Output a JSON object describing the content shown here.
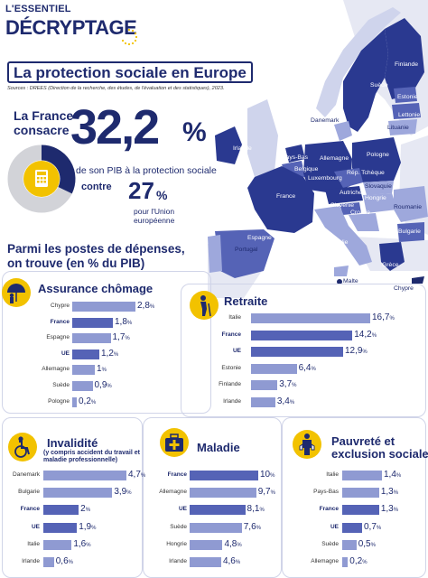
{
  "header": {
    "small": "L'ESSENTIEL",
    "big": "DÉCRYPTAGE"
  },
  "title": "La protection sociale en Europe",
  "source": "Sources : DREES (Direction de la recherche, des études, de l'évaluation et des statistiques), 2023.",
  "headline": {
    "country_line1": "La France",
    "country_line2": "consacre",
    "value": "32,2",
    "unit": "%",
    "description": "de son PIB à la protection sociale",
    "contre": "contre",
    "ue_value": "27",
    "ue_unit": "%",
    "ue_description_1": "pour l'Union",
    "ue_description_2": "européenne"
  },
  "section_heading_1": "Parmi les postes de dépenses,",
  "section_heading_2": "on trouve (en % du PIB)",
  "map_labels": [
    {
      "name": "Finlande"
    },
    {
      "name": "Suède"
    },
    {
      "name": "Estonie"
    },
    {
      "name": "Lettonie"
    },
    {
      "name": "Lituanie"
    },
    {
      "name": "Danemark"
    },
    {
      "name": "Irlande"
    },
    {
      "name": "Pays-Bas"
    },
    {
      "name": "Allemagne"
    },
    {
      "name": "Pologne"
    },
    {
      "name": "Belgique"
    },
    {
      "name": "Luxembourg"
    },
    {
      "name": "Rép. Tchèque"
    },
    {
      "name": "Slovaquie"
    },
    {
      "name": "Autriche"
    },
    {
      "name": "Hongrie"
    },
    {
      "name": "France"
    },
    {
      "name": "Roumanie"
    },
    {
      "name": "Slovénie"
    },
    {
      "name": "Croatie"
    },
    {
      "name": "Bulgarie"
    },
    {
      "name": "Espagne"
    },
    {
      "name": "Portugal"
    },
    {
      "name": "Italie"
    },
    {
      "name": "Grèce"
    },
    {
      "name": "Malte"
    },
    {
      "name": "Chypre"
    }
  ],
  "colors": {
    "navy": "#1e2a6e",
    "bar": "#8f9ad2",
    "bar_highlight": "#5563b6",
    "accent": "#f2c200",
    "map_dark": "#2a3990",
    "map_light": "#9ea8dc"
  },
  "chart_data": [
    {
      "type": "bar",
      "title": "Assurance chômage",
      "icon": "umbrella-person-icon",
      "categories": [
        "Chypre",
        "France",
        "Espagne",
        "UE",
        "Allemagne",
        "Suède",
        "Pologne"
      ],
      "values": [
        2.8,
        1.8,
        1.7,
        1.2,
        1.0,
        0.9,
        0.2
      ],
      "labels": [
        "2,8",
        "1,8",
        "1,7",
        "1,2",
        "1",
        "0,9",
        "0,2"
      ],
      "highlight": [
        "France",
        "UE"
      ],
      "unit": "%"
    },
    {
      "type": "bar",
      "title": "Retraite",
      "icon": "elderly-person-icon",
      "categories": [
        "Italie",
        "France",
        "UE",
        "Estonie",
        "Finlande",
        "Irlande"
      ],
      "values": [
        16.7,
        14.2,
        12.9,
        6.4,
        3.7,
        3.4
      ],
      "labels": [
        "16,7",
        "14,2",
        "12,9",
        "6,4",
        "3,7",
        "3,4"
      ],
      "highlight": [
        "France",
        "UE"
      ],
      "unit": "%"
    },
    {
      "type": "bar",
      "title": "Invalidité",
      "subtitle": "(y compris accident du travail et maladie professionnelle)",
      "icon": "wheelchair-icon",
      "categories": [
        "Danemark",
        "Bulgarie",
        "France",
        "UE",
        "Italie",
        "Irlande"
      ],
      "values": [
        4.7,
        3.9,
        2.0,
        1.9,
        1.6,
        0.6
      ],
      "labels": [
        "4,7",
        "3,9",
        "2",
        "1,9",
        "1,6",
        "0,6"
      ],
      "highlight": [
        "France",
        "UE"
      ],
      "unit": "%"
    },
    {
      "type": "bar",
      "title": "Maladie",
      "icon": "medical-kit-icon",
      "categories": [
        "France",
        "Allemagne",
        "UE",
        "Suède",
        "Hongrie",
        "Irlande"
      ],
      "values": [
        10,
        9.7,
        8.1,
        7.6,
        4.8,
        4.6
      ],
      "labels": [
        "10",
        "9,7",
        "8,1",
        "7,6",
        "4,8",
        "4,6"
      ],
      "highlight": [
        "France",
        "UE"
      ],
      "unit": "%"
    },
    {
      "type": "bar",
      "title": "Pauvreté et exclusion sociale",
      "title_line1": "Pauvreté et",
      "title_line2": "exclusion sociale",
      "icon": "empty-pocket-person-icon",
      "categories": [
        "Italie",
        "Pays-Bas",
        "France",
        "UE",
        "Suède",
        "Allemagne"
      ],
      "values": [
        1.4,
        1.3,
        1.3,
        0.7,
        0.5,
        0.2
      ],
      "labels": [
        "1,4",
        "1,3",
        "1,3",
        "0,7",
        "0,5",
        "0,2"
      ],
      "highlight": [
        "France",
        "UE"
      ],
      "unit": "%"
    }
  ]
}
